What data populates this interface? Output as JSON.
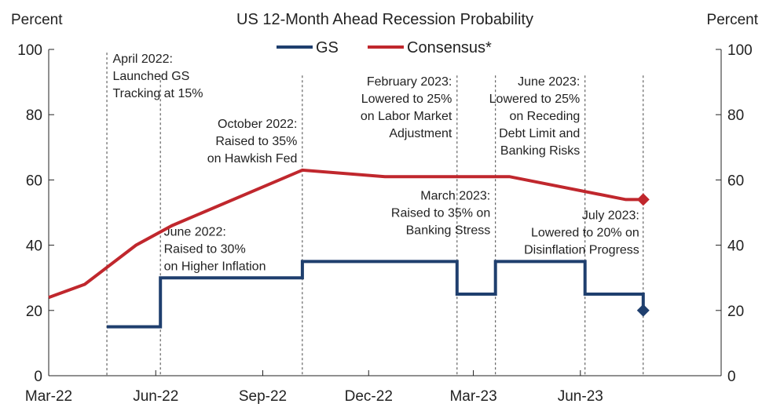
{
  "chart_data": {
    "type": "line",
    "title": "US 12-Month Ahead Recession Probability",
    "ylabel_left": "Percent",
    "ylabel_right": "Percent",
    "ylim": [
      0,
      100
    ],
    "yticks": [
      0,
      20,
      40,
      60,
      80,
      100
    ],
    "xlim": [
      "2022-03-01",
      "2023-09-30"
    ],
    "xticks": [
      {
        "date": "2022-03-01",
        "label": "Mar-22"
      },
      {
        "date": "2022-06-01",
        "label": "Jun-22"
      },
      {
        "date": "2022-09-01",
        "label": "Sep-22"
      },
      {
        "date": "2022-12-01",
        "label": "Dec-22"
      },
      {
        "date": "2023-03-01",
        "label": "Mar-23"
      },
      {
        "date": "2023-06-01",
        "label": "Jun-23"
      }
    ],
    "legend": {
      "placement": "top-center"
    },
    "series": [
      {
        "name": "GS",
        "color": "#1f3f6e",
        "step": true,
        "end_marker": "diamond",
        "points": [
          [
            "2022-04-20",
            15
          ],
          [
            "2022-06-05",
            15
          ],
          [
            "2022-06-05",
            30
          ],
          [
            "2022-10-05",
            30
          ],
          [
            "2022-10-05",
            35
          ],
          [
            "2023-02-15",
            35
          ],
          [
            "2023-02-15",
            25
          ],
          [
            "2023-03-20",
            25
          ],
          [
            "2023-03-20",
            35
          ],
          [
            "2023-06-05",
            35
          ],
          [
            "2023-06-05",
            25
          ],
          [
            "2023-07-25",
            25
          ],
          [
            "2023-07-25",
            20
          ]
        ]
      },
      {
        "name": "Consensus*",
        "color": "#c0272d",
        "step": false,
        "end_marker": "diamond",
        "points": [
          [
            "2022-03-01",
            24
          ],
          [
            "2022-04-01",
            28
          ],
          [
            "2022-05-15",
            40
          ],
          [
            "2022-06-15",
            46
          ],
          [
            "2022-10-05",
            63
          ],
          [
            "2022-12-15",
            61
          ],
          [
            "2023-04-01",
            61
          ],
          [
            "2023-07-10",
            54
          ],
          [
            "2023-07-25",
            54
          ]
        ]
      }
    ],
    "annotations": [
      {
        "date": "2022-04-20",
        "lines": [
          "April 2022:",
          "Launched GS",
          "Tracking at 15%"
        ],
        "align": "start",
        "anchor_date": "2022-04-25",
        "y_top": 100
      },
      {
        "date": "2022-06-05",
        "lines": [
          "June 2022:",
          "Raised to 30%",
          "on Higher Inflation"
        ],
        "align": "start",
        "anchor_date": "2022-06-08",
        "y_top": 47
      },
      {
        "date": "2022-10-05",
        "lines": [
          "October 2022:",
          "Raised to 35%",
          "on Hawkish Fed"
        ],
        "align": "end",
        "anchor_date": "2022-10-02",
        "y_top": 80
      },
      {
        "date": "2023-02-15",
        "lines": [
          "February 2023:",
          "Lowered to 25%",
          "on Labor Market",
          "Adjustment"
        ],
        "align": "end",
        "anchor_date": "2023-02-12",
        "y_top": 93
      },
      {
        "date": "2023-03-20",
        "lines": [
          "March 2023:",
          "Raised to 35% on",
          "Banking Stress"
        ],
        "align": "end",
        "anchor_date": "2023-03-17",
        "y_top": 58
      },
      {
        "date": "2023-06-05",
        "lines": [
          "June 2023:",
          "Lowered to 25%",
          "on Receding",
          "Debt Limit  and",
          "Banking Risks"
        ],
        "align": "end",
        "anchor_date": "2023-06-02",
        "y_top": 93
      },
      {
        "date": "2023-07-25",
        "lines": [
          "July 2023:",
          "Lowered to 20% on",
          "Disinflation Progress"
        ],
        "align": "end",
        "anchor_date": "2023-07-23",
        "y_top": 52
      }
    ]
  }
}
